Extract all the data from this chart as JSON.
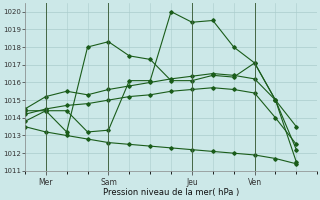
{
  "xlabel": "Pression niveau de la mer( hPa )",
  "bg_color": "#cce8e8",
  "grid_color": "#aacccc",
  "line_color": "#1a5c1a",
  "ylim": [
    1011,
    1020.5
  ],
  "yticks": [
    1011,
    1012,
    1013,
    1014,
    1015,
    1016,
    1017,
    1018,
    1019,
    1020
  ],
  "x_tick_labels": [
    "Mer",
    "Sam",
    "Jeu",
    "Ven"
  ],
  "x_tick_positions": [
    1,
    4,
    8,
    11
  ],
  "xlim": [
    0,
    14
  ],
  "series": [
    {
      "x": [
        0,
        1,
        2,
        3,
        4,
        5,
        6,
        7,
        8,
        9,
        10,
        11,
        12,
        13
      ],
      "y": [
        1013.8,
        1014.4,
        1014.4,
        1013.2,
        1013.3,
        1016.1,
        1016.1,
        1020.0,
        1019.4,
        1019.5,
        1018.0,
        1017.1,
        1015.0,
        1011.5
      ]
    },
    {
      "x": [
        0,
        1,
        2,
        3,
        4,
        5,
        6,
        7,
        8,
        9,
        10,
        11,
        12,
        13
      ],
      "y": [
        1014.4,
        1014.4,
        1013.2,
        1018.0,
        1018.3,
        1017.5,
        1017.3,
        1016.1,
        1016.1,
        1016.4,
        1016.3,
        1017.1,
        1015.0,
        1012.2
      ]
    },
    {
      "x": [
        0,
        1,
        2,
        3,
        4,
        5,
        6,
        7,
        8,
        9,
        10,
        11,
        12,
        13
      ],
      "y": [
        1014.5,
        1015.2,
        1015.5,
        1015.3,
        1015.6,
        1015.8,
        1016.0,
        1016.2,
        1016.35,
        1016.5,
        1016.4,
        1016.2,
        1015.0,
        1013.5
      ]
    },
    {
      "x": [
        0,
        1,
        2,
        3,
        4,
        5,
        6,
        7,
        8,
        9,
        10,
        11,
        12,
        13
      ],
      "y": [
        1014.2,
        1014.5,
        1014.7,
        1014.8,
        1015.0,
        1015.2,
        1015.3,
        1015.5,
        1015.6,
        1015.7,
        1015.6,
        1015.4,
        1014.0,
        1012.5
      ]
    },
    {
      "x": [
        0,
        1,
        2,
        3,
        4,
        5,
        6,
        7,
        8,
        9,
        10,
        11,
        12,
        13
      ],
      "y": [
        1013.5,
        1013.2,
        1013.0,
        1012.8,
        1012.6,
        1012.5,
        1012.4,
        1012.3,
        1012.2,
        1012.1,
        1012.0,
        1011.9,
        1011.7,
        1011.4
      ]
    }
  ]
}
